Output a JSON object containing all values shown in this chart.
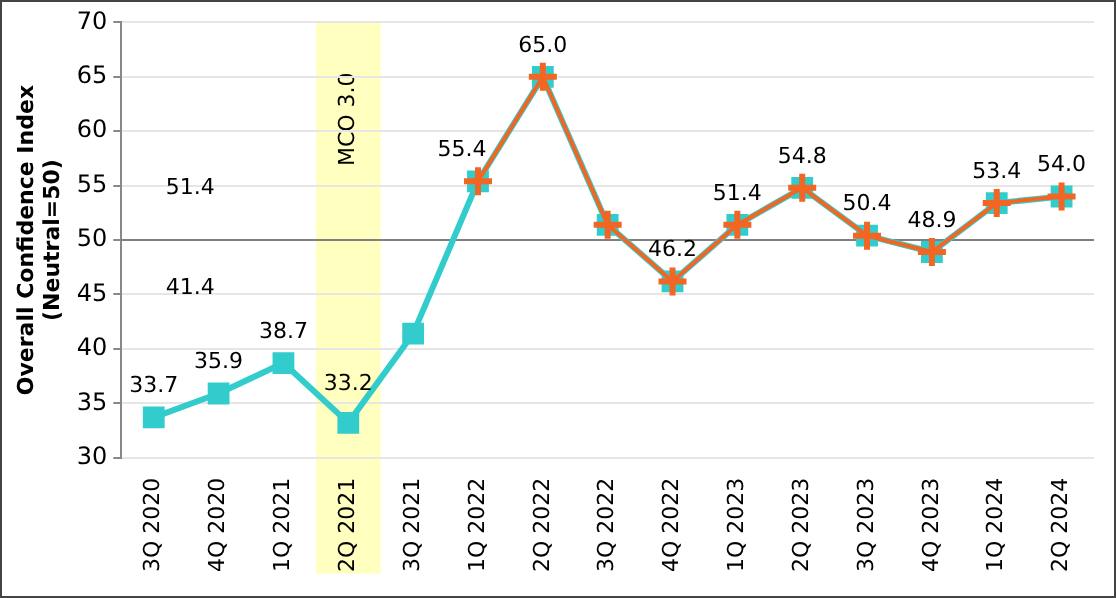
{
  "chart_data": {
    "type": "line",
    "ylabel": "Overall Confidence Index\n(Neutral=50)",
    "categories": [
      "3Q 2020",
      "4Q 2020",
      "1Q 2021",
      "2Q 2021",
      "3Q 2021",
      "1Q 2022",
      "2Q 2022",
      "3Q 2022",
      "4Q 2022",
      "1Q 2023",
      "2Q 2023",
      "3Q 2023",
      "4Q 2023",
      "1Q 2024",
      "2Q 2024"
    ],
    "series": [
      {
        "color": "#33cccc",
        "marker": "square",
        "values": [
          33.7,
          35.9,
          38.7,
          33.2,
          41.4,
          55.4,
          65.0,
          51.4,
          46.2,
          51.4,
          54.8,
          50.4,
          48.9,
          53.4,
          54.0
        ],
        "value_labels": [
          "33.7",
          "35.9",
          "38.7",
          "33.2",
          null,
          "55.4",
          "65.0",
          null,
          "46.2",
          "51.4",
          "54.8",
          "50.4",
          "48.9",
          "53.4",
          "54.0"
        ]
      },
      {
        "color": "#f26522",
        "marker": "cross",
        "values": [
          null,
          null,
          null,
          null,
          null,
          55.4,
          65.0,
          51.4,
          46.2,
          51.4,
          54.8,
          50.4,
          48.9,
          53.4,
          54.0
        ]
      }
    ],
    "ylim": [
      30,
      70
    ],
    "yticks": [
      30,
      35,
      40,
      45,
      50,
      55,
      60,
      65,
      70
    ],
    "grid": "y",
    "legend": false,
    "bands": [
      {
        "axis": "x",
        "from": "2Q 2021",
        "to": "2Q 2021",
        "label": "MCO 3.0",
        "color": "#ffffc0"
      }
    ],
    "ref_lines": [
      {
        "axis": "y",
        "value": 50,
        "color": "#808080"
      }
    ],
    "annotations": [
      "51.4",
      "41.4"
    ]
  }
}
